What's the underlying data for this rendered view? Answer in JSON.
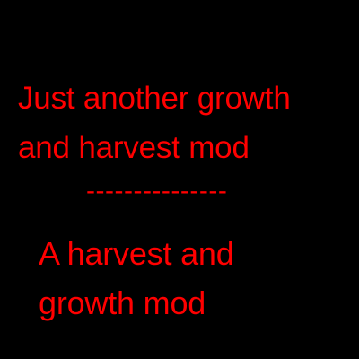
{
  "lines": {
    "first_a": "Just another growth",
    "first_b": "and harvest mod",
    "separator": "---------------",
    "second_a": "A harvest and",
    "second_b": "growth mod"
  },
  "colors": {
    "background": "#000000",
    "text": "#ff0000"
  }
}
